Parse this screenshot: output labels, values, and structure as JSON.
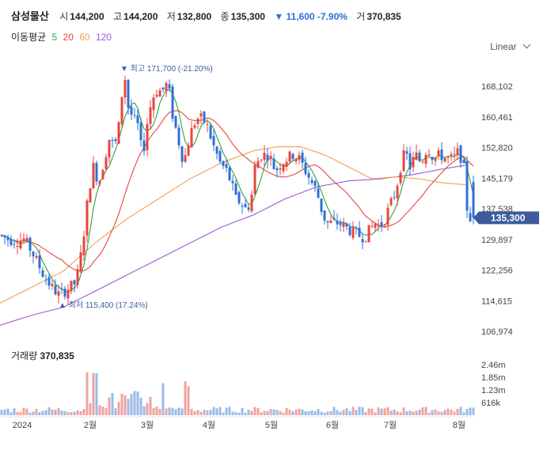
{
  "header": {
    "name": "삼성물산",
    "open_label": "시",
    "open": "144,200",
    "high_label": "고",
    "high": "144,200",
    "low_label": "저",
    "low": "132,800",
    "close_label": "종",
    "close": "135,300",
    "change": "▼ 11,600 -7.90%",
    "volume_label": "거",
    "volume": "370,835"
  },
  "ma": {
    "label": "이동평균",
    "p5": "5",
    "p20": "20",
    "p60": "60",
    "p120": "120"
  },
  "scale_label": "Linear",
  "colors": {
    "up": "#e8453c",
    "down": "#2f6fd6",
    "ma5": "#2ea043",
    "ma20": "#e8453c",
    "ma60": "#f0a050",
    "ma120": "#9b59d6",
    "badge": "#3d5a9e"
  },
  "chart_data": {
    "type": "candlestick",
    "y_ticks": [
      "168,102",
      "160,461",
      "152,820",
      "145,179",
      "137,538",
      "129,897",
      "122,256",
      "114,615",
      "106,974"
    ],
    "y_tick_values": [
      168102,
      160461,
      152820,
      145179,
      137538,
      129897,
      122256,
      114615,
      106974
    ],
    "x_labels": [
      "2024",
      "2월",
      "3월",
      "4월",
      "5월",
      "6월",
      "7월",
      "8월"
    ],
    "last_price": "135,300",
    "annotations": {
      "high": {
        "label": "최고",
        "text": "171,700 (-21.20%)",
        "value": 171700
      },
      "low": {
        "label": "최저",
        "text": "115,400 (17.24%)",
        "value": 115400
      }
    },
    "price_key": [
      [
        0,
        131000
      ],
      [
        10,
        130000
      ],
      [
        20,
        129500
      ],
      [
        30,
        130000
      ],
      [
        40,
        127000
      ],
      [
        55,
        121000
      ],
      [
        65,
        118000
      ],
      [
        75,
        116000
      ],
      [
        85,
        117500
      ],
      [
        95,
        119000
      ],
      [
        100,
        123000
      ],
      [
        105,
        130000
      ],
      [
        108,
        135000
      ],
      [
        112,
        142000
      ],
      [
        118,
        148000
      ],
      [
        125,
        144000
      ],
      [
        132,
        150000
      ],
      [
        138,
        155000
      ],
      [
        145,
        153000
      ],
      [
        150,
        158000
      ],
      [
        155,
        168000
      ],
      [
        158,
        170000
      ],
      [
        162,
        163000
      ],
      [
        168,
        160000
      ],
      [
        175,
        158000
      ],
      [
        180,
        150000
      ],
      [
        185,
        158000
      ],
      [
        190,
        163000
      ],
      [
        196,
        167000
      ],
      [
        205,
        167000
      ],
      [
        212,
        169000
      ],
      [
        218,
        161000
      ],
      [
        225,
        155000
      ],
      [
        232,
        149000
      ],
      [
        240,
        156000
      ],
      [
        248,
        160000
      ],
      [
        256,
        160000
      ],
      [
        262,
        158000
      ],
      [
        270,
        153000
      ],
      [
        278,
        149000
      ],
      [
        286,
        147000
      ],
      [
        292,
        144000
      ],
      [
        298,
        140000
      ],
      [
        305,
        139000
      ],
      [
        312,
        137000
      ],
      [
        318,
        141000
      ],
      [
        322,
        148000
      ],
      [
        330,
        151000
      ],
      [
        340,
        151000
      ],
      [
        348,
        147000
      ],
      [
        355,
        149000
      ],
      [
        362,
        150000
      ],
      [
        370,
        151000
      ],
      [
        378,
        150000
      ],
      [
        386,
        147000
      ],
      [
        394,
        144000
      ],
      [
        400,
        142000
      ],
      [
        405,
        138000
      ],
      [
        412,
        134000
      ],
      [
        420,
        134000
      ],
      [
        428,
        134000
      ],
      [
        436,
        133000
      ],
      [
        444,
        132000
      ],
      [
        452,
        131000
      ],
      [
        460,
        130500
      ],
      [
        466,
        132000
      ],
      [
        474,
        134000
      ],
      [
        480,
        133000
      ],
      [
        486,
        135000
      ],
      [
        492,
        138000
      ],
      [
        500,
        142000
      ],
      [
        506,
        148000
      ],
      [
        512,
        152000
      ],
      [
        518,
        148000
      ],
      [
        525,
        151000
      ],
      [
        532,
        149000
      ],
      [
        540,
        153000
      ],
      [
        548,
        150000
      ],
      [
        556,
        151000
      ],
      [
        564,
        150000
      ],
      [
        572,
        150000
      ],
      [
        580,
        152000
      ],
      [
        586,
        147500
      ],
      [
        591,
        135300
      ]
    ],
    "ma120_key": [
      [
        0,
        108500
      ],
      [
        40,
        111000
      ],
      [
        80,
        113000
      ],
      [
        120,
        117000
      ],
      [
        160,
        121000
      ],
      [
        200,
        125000
      ],
      [
        240,
        129000
      ],
      [
        280,
        133000
      ],
      [
        320,
        136000
      ],
      [
        360,
        140000
      ],
      [
        400,
        143000
      ],
      [
        440,
        144500
      ],
      [
        480,
        145000
      ],
      [
        520,
        146000
      ],
      [
        560,
        147500
      ],
      [
        591,
        148500
      ]
    ],
    "ma60_key": [
      [
        0,
        114000
      ],
      [
        40,
        118000
      ],
      [
        80,
        122000
      ],
      [
        120,
        129000
      ],
      [
        160,
        135000
      ],
      [
        200,
        140000
      ],
      [
        240,
        145000
      ],
      [
        280,
        149000
      ],
      [
        320,
        152000
      ],
      [
        350,
        153000
      ],
      [
        380,
        153000
      ],
      [
        410,
        151000
      ],
      [
        440,
        148000
      ],
      [
        470,
        145000
      ],
      [
        500,
        145500
      ],
      [
        530,
        145000
      ],
      [
        560,
        144000
      ],
      [
        591,
        143500
      ]
    ],
    "volume_ticks": [
      "2.46m",
      "1.85m",
      "1.23m",
      "616k"
    ],
    "volume_tick_values": [
      2460000,
      1850000,
      1230000,
      616000
    ]
  }
}
